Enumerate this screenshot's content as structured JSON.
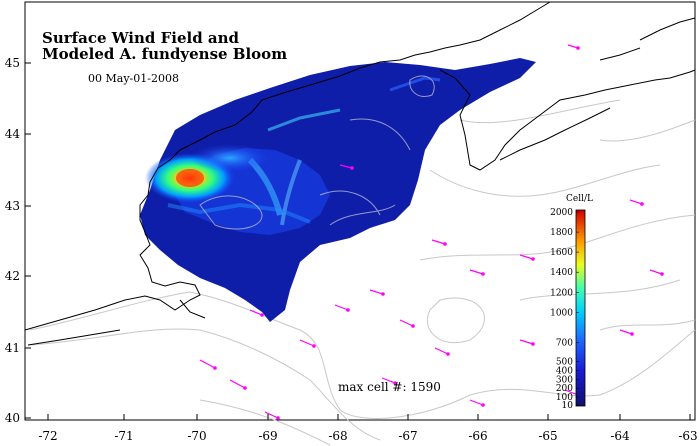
{
  "title": {
    "line1": "Surface Wind Field and",
    "line2": "Modeled A. fundyense Bloom"
  },
  "timestamp": "00  May-01-2008",
  "max_cell_label": "max cell #: 1590",
  "x_axis": {
    "ticks": [
      "-72",
      "-71",
      "-70",
      "-69",
      "-68",
      "-67",
      "-66",
      "-65",
      "-64",
      "-63"
    ]
  },
  "y_axis": {
    "ticks": [
      "45",
      "44",
      "43",
      "42",
      "41",
      "40"
    ]
  },
  "colorbar": {
    "title": "Cell/L",
    "ticks": [
      "2000",
      "1800",
      "1600",
      "1400",
      "1200",
      "1000",
      "700",
      "500",
      "400",
      "300",
      "200",
      "100",
      "10"
    ],
    "tick_values": [
      2000,
      1800,
      1600,
      1400,
      1200,
      1000,
      700,
      500,
      400,
      300,
      200,
      100,
      10
    ]
  },
  "colors": {
    "bloom_low": "#0a1a9e",
    "bloom_mid": "#1e90ff",
    "bloom_high": "#ff2a00",
    "wind_arrows": "#ff00ff",
    "contours": "#c8c8c8",
    "coastline": "#000000"
  }
}
